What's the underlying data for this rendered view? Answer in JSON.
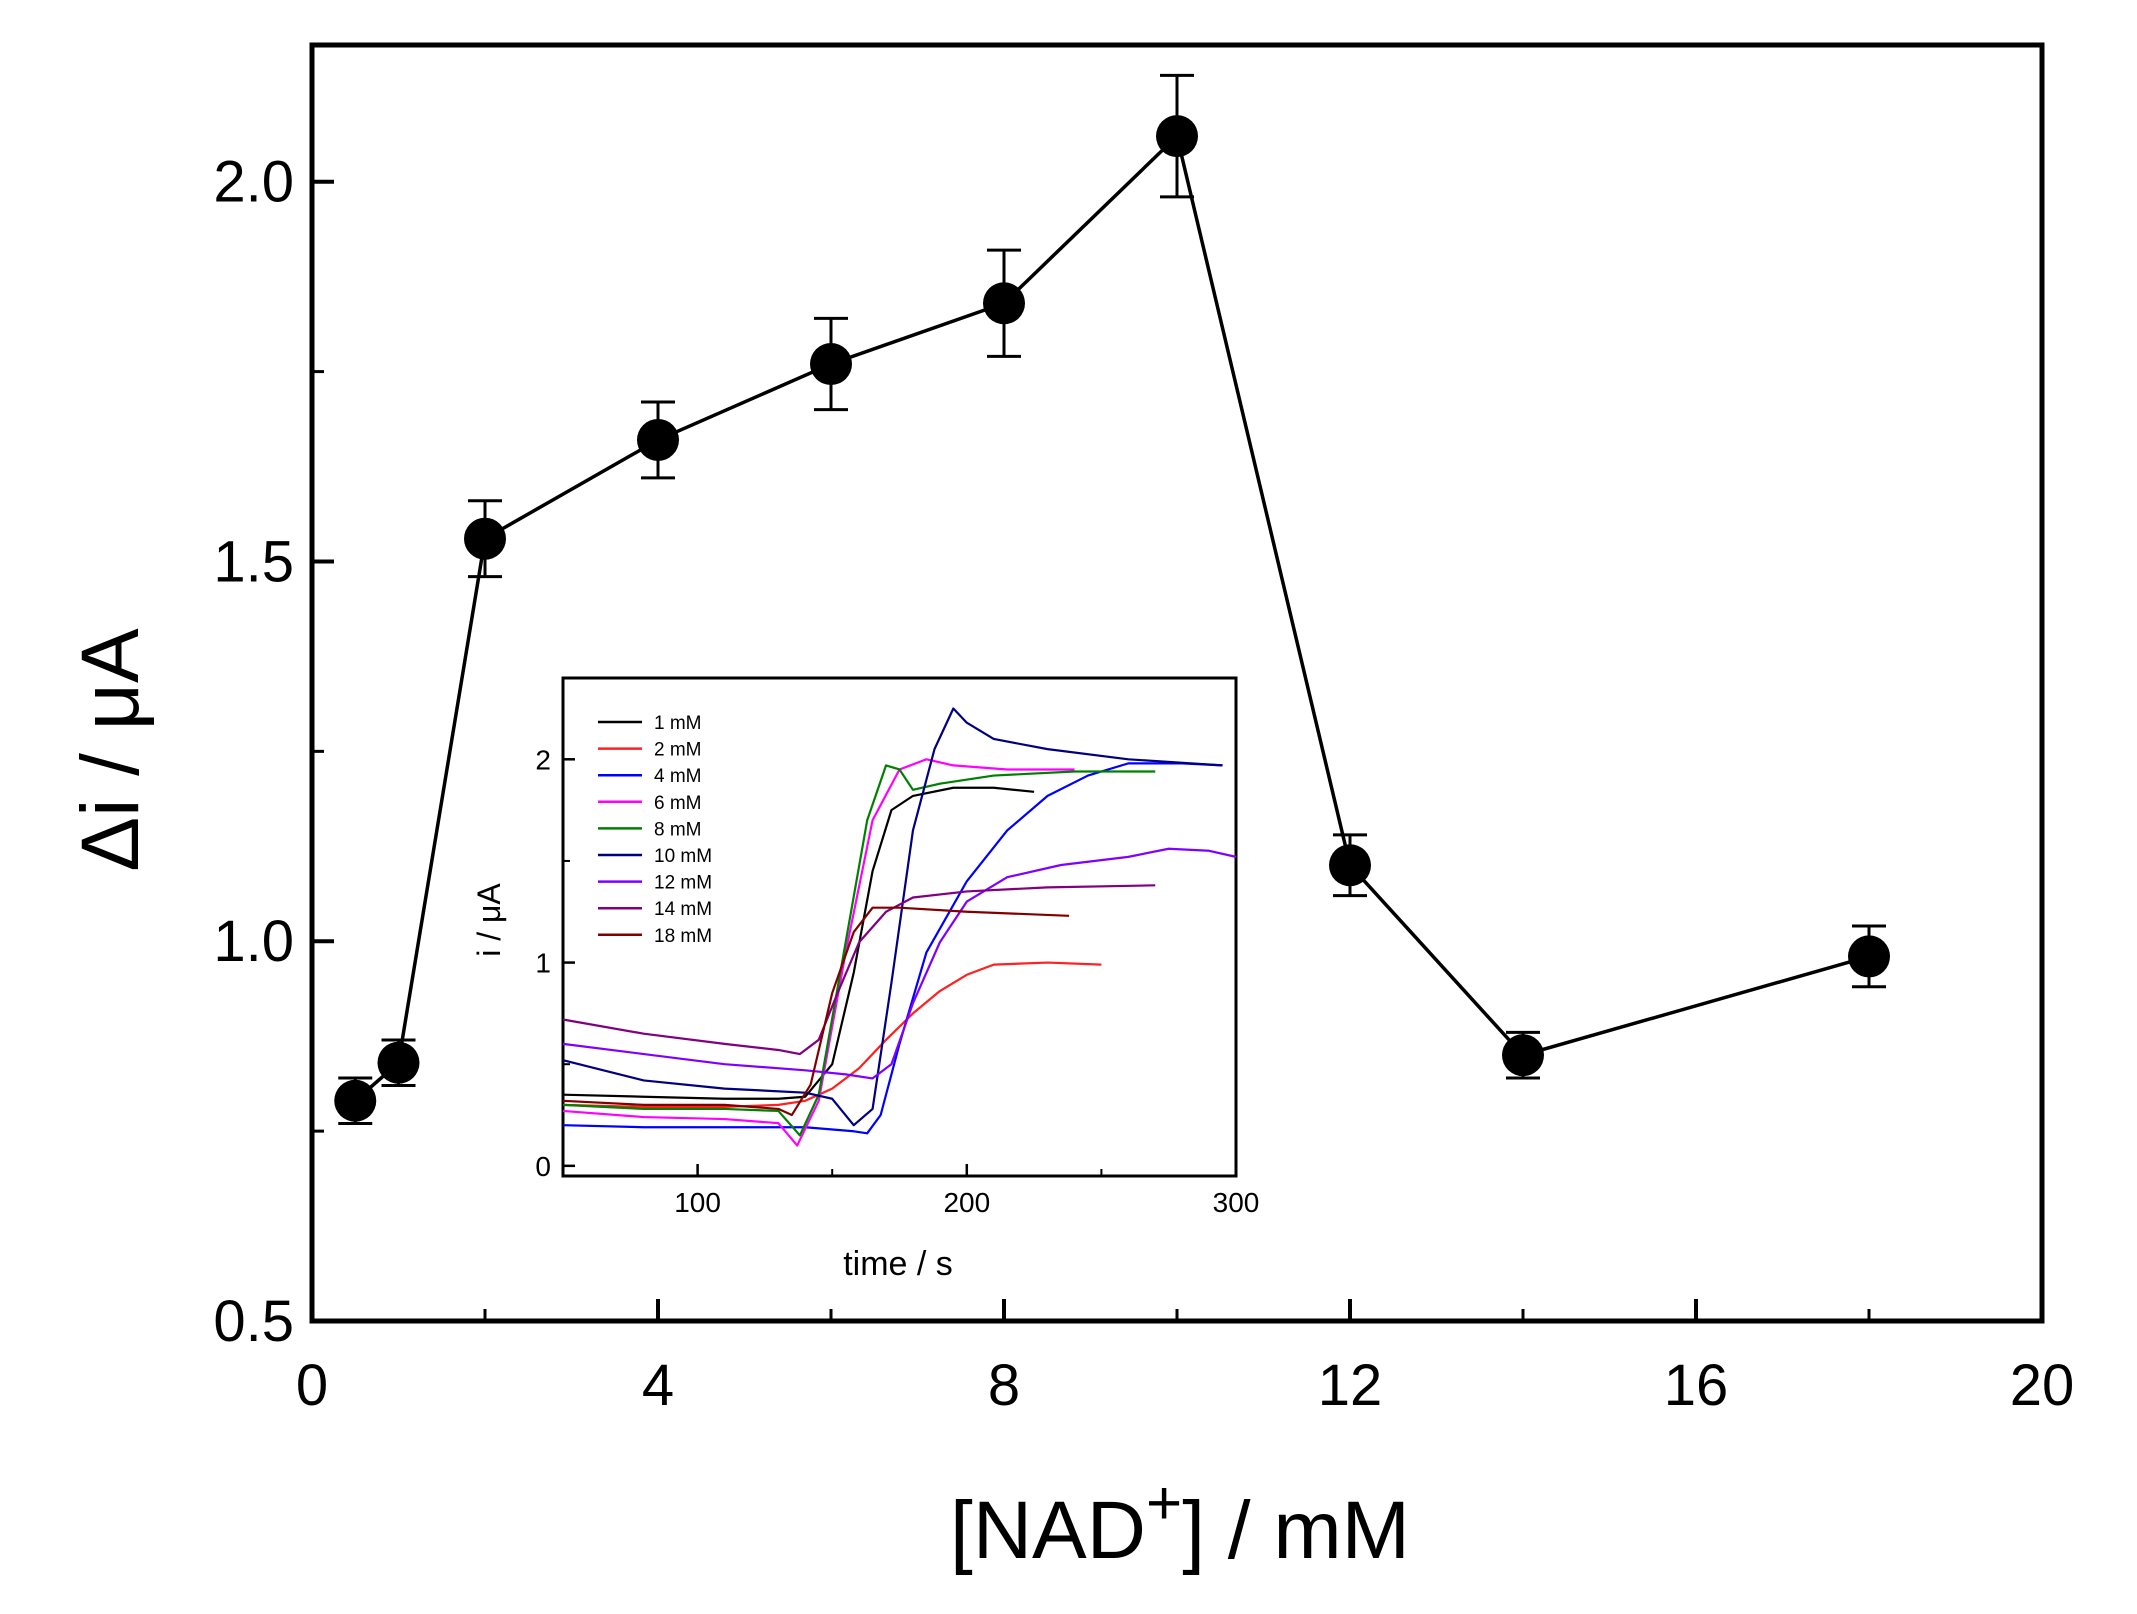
{
  "chart_data": [
    {
      "id": "main",
      "type": "scatter",
      "connected": true,
      "xlabel": {
        "bracket_open": "[",
        "name": "NAD",
        "sup": "+",
        "bracket_close": "]",
        "units": " / mM"
      },
      "ylabel": "Δi / μA",
      "xlim": [
        0,
        20
      ],
      "ylim": [
        0.5,
        2.18
      ],
      "xticks": [
        "0",
        "4",
        "8",
        "12",
        "16",
        "20"
      ],
      "xtick_values": [
        0,
        4,
        8,
        12,
        16,
        20
      ],
      "yticks": [
        "0.5",
        "1.0",
        "1.5",
        "2.0"
      ],
      "ytick_values": [
        0.5,
        1.0,
        1.5,
        2.0
      ],
      "marker_color": "#000000",
      "line_color": "#000000",
      "points": [
        {
          "x": 0.5,
          "y": 0.79,
          "err": 0.03
        },
        {
          "x": 1,
          "y": 0.84,
          "err": 0.03
        },
        {
          "x": 2,
          "y": 1.53,
          "err": 0.05
        },
        {
          "x": 4,
          "y": 1.66,
          "err": 0.05
        },
        {
          "x": 6,
          "y": 1.76,
          "err": 0.06
        },
        {
          "x": 8,
          "y": 1.84,
          "err": 0.07
        },
        {
          "x": 10,
          "y": 2.06,
          "err": 0.08
        },
        {
          "x": 12,
          "y": 1.1,
          "err": 0.04
        },
        {
          "x": 14,
          "y": 0.85,
          "err": 0.03
        },
        {
          "x": 18,
          "y": 0.98,
          "err": 0.04
        }
      ]
    },
    {
      "id": "inset",
      "type": "line",
      "xlabel": "time / s",
      "ylabel": "i / μA",
      "xlim": [
        50,
        300
      ],
      "ylim": [
        -0.05,
        2.4
      ],
      "xticks": [
        "100",
        "200",
        "300"
      ],
      "xtick_values": [
        100,
        200,
        300
      ],
      "yticks": [
        "0",
        "1",
        "2"
      ],
      "ytick_values": [
        0,
        1,
        2
      ],
      "series": [
        {
          "name": "1 mM",
          "color": "#000000",
          "x": [
            50,
            80,
            110,
            130,
            140,
            150,
            158,
            165,
            172,
            180,
            195,
            210,
            225
          ],
          "y": [
            0.35,
            0.34,
            0.33,
            0.33,
            0.34,
            0.5,
            0.95,
            1.45,
            1.75,
            1.82,
            1.86,
            1.86,
            1.84
          ]
        },
        {
          "name": "2 mM",
          "color": "#ff2020",
          "x": [
            50,
            80,
            110,
            130,
            140,
            150,
            160,
            170,
            180,
            190,
            200,
            210,
            230,
            250
          ],
          "y": [
            0.3,
            0.29,
            0.29,
            0.3,
            0.32,
            0.38,
            0.48,
            0.62,
            0.75,
            0.86,
            0.94,
            0.99,
            1.0,
            0.99
          ]
        },
        {
          "name": "4 mM",
          "color": "#0000ff",
          "x": [
            50,
            80,
            110,
            140,
            158,
            163,
            168,
            175,
            185,
            200,
            215,
            230,
            245,
            260,
            280,
            295
          ],
          "y": [
            0.2,
            0.19,
            0.19,
            0.19,
            0.17,
            0.16,
            0.25,
            0.6,
            1.05,
            1.4,
            1.65,
            1.82,
            1.92,
            1.98,
            1.98,
            1.97
          ]
        },
        {
          "name": "6 mM",
          "color": "#ff00ff",
          "x": [
            50,
            80,
            110,
            130,
            137,
            145,
            155,
            165,
            175,
            185,
            195,
            215,
            240
          ],
          "y": [
            0.27,
            0.24,
            0.23,
            0.21,
            0.1,
            0.32,
            1.05,
            1.7,
            1.95,
            2.0,
            1.97,
            1.95,
            1.95
          ]
        },
        {
          "name": "8 mM",
          "color": "#008000",
          "x": [
            50,
            80,
            110,
            130,
            138,
            145,
            155,
            163,
            170,
            175,
            180,
            190,
            210,
            240,
            270
          ],
          "y": [
            0.3,
            0.28,
            0.28,
            0.27,
            0.15,
            0.35,
            1.1,
            1.7,
            1.97,
            1.95,
            1.85,
            1.88,
            1.92,
            1.94,
            1.94
          ]
        },
        {
          "name": "10 mM",
          "color": "#000080",
          "x": [
            50,
            80,
            110,
            140,
            150,
            158,
            165,
            172,
            180,
            188,
            195,
            200,
            210,
            230,
            260,
            295
          ],
          "y": [
            0.52,
            0.42,
            0.38,
            0.36,
            0.33,
            0.2,
            0.28,
            0.9,
            1.65,
            2.05,
            2.25,
            2.18,
            2.1,
            2.05,
            2.0,
            1.97
          ]
        },
        {
          "name": "12 mM",
          "color": "#8000ff",
          "x": [
            50,
            80,
            110,
            140,
            155,
            165,
            172,
            180,
            190,
            200,
            215,
            235,
            260,
            275,
            290,
            300
          ],
          "y": [
            0.6,
            0.55,
            0.5,
            0.47,
            0.45,
            0.43,
            0.5,
            0.8,
            1.1,
            1.3,
            1.42,
            1.48,
            1.52,
            1.56,
            1.55,
            1.52
          ]
        },
        {
          "name": "14 mM",
          "color": "#800080",
          "x": [
            50,
            80,
            110,
            130,
            138,
            145,
            152,
            160,
            170,
            180,
            200,
            230,
            270
          ],
          "y": [
            0.72,
            0.65,
            0.6,
            0.57,
            0.55,
            0.62,
            0.85,
            1.1,
            1.25,
            1.32,
            1.35,
            1.37,
            1.38
          ]
        },
        {
          "name": "18 mM",
          "color": "#800000",
          "x": [
            50,
            80,
            110,
            130,
            135,
            142,
            150,
            158,
            165,
            175,
            200,
            238
          ],
          "y": [
            0.32,
            0.3,
            0.3,
            0.28,
            0.25,
            0.4,
            0.85,
            1.15,
            1.27,
            1.27,
            1.25,
            1.23
          ]
        }
      ]
    }
  ]
}
